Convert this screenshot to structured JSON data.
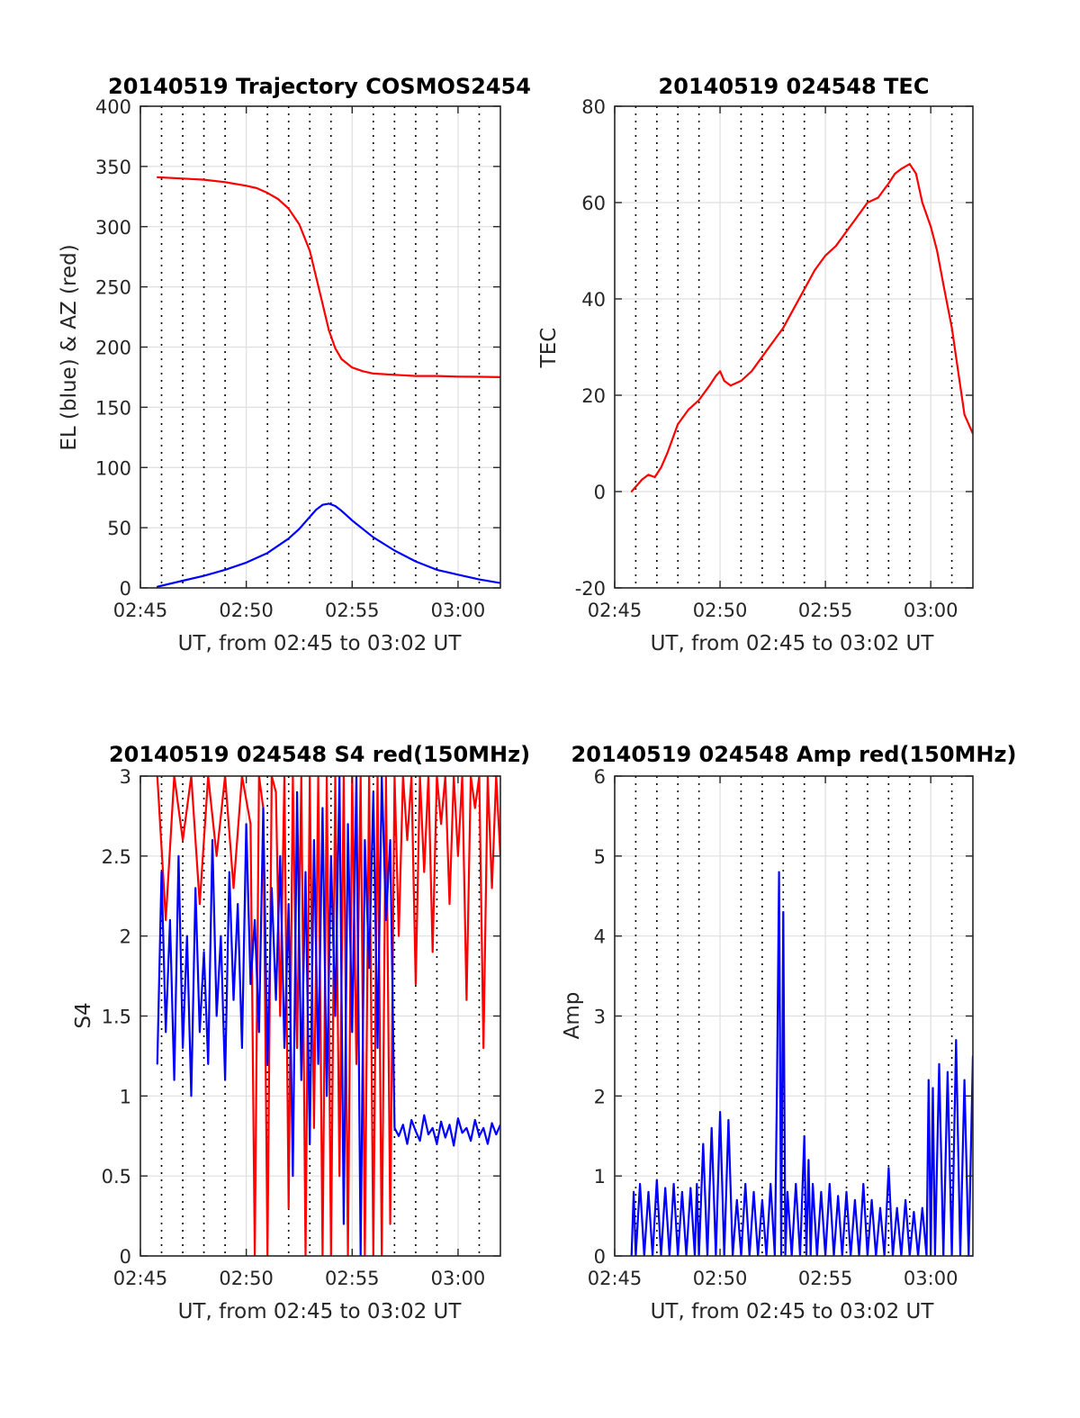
{
  "figure": {
    "background": "#ffffff",
    "colors": {
      "red": "#ff0000",
      "blue": "#0000ff",
      "axis": "#262626",
      "grid": "#dfdfdf",
      "vgrid": "#000000"
    }
  },
  "chart_data": [
    {
      "type": "line",
      "title": "20140519 Trajectory COSMOS2454",
      "xlabel": "UT, from 02:45 to 03:02 UT",
      "ylabel": "EL (blue) & AZ (red)",
      "xlim": [
        0,
        17
      ],
      "ylim": [
        0,
        400
      ],
      "xticks": [
        0,
        5,
        10,
        15
      ],
      "xticklabels": [
        "02:45",
        "02:50",
        "02:55",
        "03:00"
      ],
      "yticks": [
        0,
        50,
        100,
        150,
        200,
        250,
        300,
        350,
        400
      ],
      "yticklabels": [
        "0",
        "50",
        "100",
        "150",
        "200",
        "250",
        "300",
        "350",
        "400"
      ],
      "vgrid_minutes": [
        1,
        2,
        3,
        4,
        6,
        7,
        8,
        9,
        11,
        12,
        13,
        14,
        16
      ],
      "series": [
        {
          "color": "red",
          "x": [
            0.8,
            2,
            3,
            4,
            5,
            5.5,
            6,
            6.5,
            7,
            7.5,
            8,
            8.3,
            8.6,
            8.9,
            9.2,
            9.5,
            10,
            10.5,
            11,
            12,
            13,
            14,
            15,
            16,
            17
          ],
          "values": [
            341,
            340,
            339,
            337,
            334,
            332,
            328,
            323,
            315,
            302,
            280,
            258,
            236,
            214,
            199,
            190,
            183,
            180,
            178,
            177,
            176,
            176,
            175.5,
            175.3,
            175
          ]
        },
        {
          "color": "blue",
          "x": [
            0.8,
            2,
            3,
            4,
            5,
            6,
            7,
            7.5,
            8,
            8.3,
            8.6,
            8.9,
            9.2,
            9.5,
            10,
            11,
            12,
            13,
            14,
            15,
            16,
            17
          ],
          "values": [
            1,
            6,
            10,
            15,
            21,
            29,
            41,
            49,
            59,
            65,
            69,
            70,
            68,
            64,
            56,
            42,
            31,
            22,
            15,
            11,
            7,
            4
          ]
        }
      ]
    },
    {
      "type": "line",
      "title": "20140519 024548 TEC",
      "xlabel": "UT, from 02:45 to 03:02 UT",
      "ylabel": "TEC",
      "xlim": [
        0,
        17
      ],
      "ylim": [
        -20,
        80
      ],
      "xticks": [
        0,
        5,
        10,
        15
      ],
      "xticklabels": [
        "02:45",
        "02:50",
        "02:55",
        "03:00"
      ],
      "yticks": [
        -20,
        0,
        20,
        40,
        60,
        80
      ],
      "yticklabels": [
        "-20",
        "0",
        "20",
        "40",
        "60",
        "80"
      ],
      "vgrid_minutes": [
        1,
        2,
        3,
        4,
        6,
        7,
        8,
        9,
        11,
        12,
        13,
        14,
        16
      ],
      "series": [
        {
          "color": "red",
          "x": [
            0.8,
            1,
            1.3,
            1.6,
            1.9,
            2.2,
            2.5,
            3,
            3.5,
            4,
            4.5,
            4.8,
            5,
            5.2,
            5.5,
            6,
            6.5,
            7,
            7.5,
            8,
            8.5,
            9,
            9.5,
            10,
            10.5,
            11,
            11.5,
            12,
            12.5,
            13,
            13.3,
            13.6,
            14,
            14.3,
            14.6,
            15,
            15.3,
            15.6,
            16,
            16.3,
            16.6,
            17
          ],
          "values": [
            0,
            1,
            2.5,
            3.5,
            3,
            5,
            8,
            14,
            17,
            19,
            22,
            24,
            25,
            23,
            22,
            23,
            25,
            28,
            31,
            34,
            38,
            42,
            46,
            49,
            51,
            54,
            57,
            60,
            61,
            64,
            66,
            67,
            68,
            66,
            60,
            55,
            50,
            43,
            34,
            25,
            16,
            12
          ]
        }
      ]
    },
    {
      "type": "line",
      "title": "20140519 024548 S4 red(150MHz)",
      "xlabel": "UT, from 02:45 to 03:02 UT",
      "ylabel": "S4",
      "xlim": [
        0,
        17
      ],
      "ylim": [
        0,
        3
      ],
      "xticks": [
        0,
        5,
        10,
        15
      ],
      "xticklabels": [
        "02:45",
        "02:50",
        "02:55",
        "03:00"
      ],
      "yticks": [
        0,
        0.5,
        1,
        1.5,
        2,
        2.5,
        3
      ],
      "yticklabels": [
        "0",
        "0.5",
        "1",
        "1.5",
        "2",
        "2.5",
        "3"
      ],
      "vgrid_minutes": [
        1,
        2,
        3,
        4,
        6,
        7,
        8,
        9,
        11,
        12,
        13,
        14,
        16
      ],
      "series": [
        {
          "color": "red",
          "x": [
            0.8,
            1.2,
            1.6,
            2,
            2.4,
            2.8,
            3.2,
            3.6,
            4,
            4.4,
            4.8,
            5.2,
            5.4,
            5.6,
            5.8,
            6,
            6.2,
            6.4,
            6.6,
            6.8,
            7,
            7.2,
            7.4,
            7.6,
            7.8,
            8,
            8.2,
            8.4,
            8.6,
            8.8,
            9,
            9.2,
            9.4,
            9.6,
            9.8,
            10,
            10.2,
            10.4,
            10.6,
            10.8,
            11,
            11.2,
            11.4,
            11.6,
            11.8,
            12,
            12.2,
            12.4,
            12.6,
            12.8,
            13,
            13.2,
            13.4,
            13.6,
            13.8,
            14,
            14.2,
            14.4,
            14.6,
            14.8,
            15,
            15.2,
            15.4,
            15.6,
            15.8,
            16,
            16.2,
            16.4,
            16.6,
            16.8,
            17
          ],
          "values": [
            3,
            2.1,
            3,
            2.6,
            3,
            2.2,
            3,
            2.5,
            3,
            2.3,
            3,
            2.7,
            0,
            3,
            2.8,
            0,
            3,
            2.9,
            1.5,
            3,
            0.3,
            3,
            1.3,
            3,
            0,
            3,
            0.8,
            3,
            0,
            3,
            0,
            3,
            0.5,
            3,
            0,
            3,
            1.2,
            3,
            0,
            3,
            0,
            3,
            0,
            3,
            0.2,
            3,
            2,
            3,
            2.6,
            3,
            1.7,
            3,
            2.4,
            3,
            1.9,
            3,
            2.7,
            3,
            2.2,
            3,
            2.5,
            3,
            1.6,
            3,
            2.8,
            3,
            1.3,
            3,
            2.3,
            3,
            2.5
          ]
        },
        {
          "color": "blue",
          "x": [
            0.8,
            1,
            1.2,
            1.4,
            1.6,
            1.8,
            2,
            2.2,
            2.4,
            2.6,
            2.8,
            3,
            3.2,
            3.4,
            3.6,
            3.8,
            4,
            4.2,
            4.4,
            4.6,
            4.8,
            5,
            5.2,
            5.4,
            5.6,
            5.8,
            6,
            6.2,
            6.4,
            6.6,
            6.8,
            7,
            7.2,
            7.4,
            7.6,
            7.8,
            8,
            8.2,
            8.4,
            8.6,
            8.8,
            9,
            9.2,
            9.4,
            9.6,
            9.8,
            10,
            10.2,
            10.4,
            10.6,
            10.8,
            11,
            11.2,
            11.4,
            11.6,
            11.8,
            12,
            12.2,
            12.4,
            12.6,
            12.8,
            13,
            13.2,
            13.4,
            13.6,
            13.8,
            14,
            14.2,
            14.4,
            14.6,
            14.8,
            15,
            15.2,
            15.4,
            15.6,
            15.8,
            16,
            16.2,
            16.4,
            16.6,
            16.8,
            17
          ],
          "values": [
            1.2,
            2.4,
            1.4,
            2.1,
            1.1,
            2.5,
            1.3,
            2,
            1,
            2.3,
            1.4,
            1.9,
            1.2,
            2.6,
            1.5,
            2,
            1.1,
            2.4,
            1.6,
            2.2,
            1.3,
            2.7,
            1.7,
            2.1,
            1.4,
            2.8,
            1.2,
            2.3,
            1.6,
            2.5,
            1.3,
            2.2,
            0.5,
            2.9,
            1.1,
            2.4,
            0.7,
            2.6,
            1.2,
            2.8,
            1,
            2.5,
            1.5,
            3,
            0.2,
            2.7,
            1.4,
            3,
            0,
            2.6,
            1.8,
            2.9,
            1.3,
            3,
            2.1,
            2.6,
            0.8,
            0.75,
            0.82,
            0.7,
            0.85,
            0.78,
            0.72,
            0.88,
            0.76,
            0.8,
            0.7,
            0.84,
            0.74,
            0.82,
            0.69,
            0.86,
            0.77,
            0.8,
            0.72,
            0.85,
            0.75,
            0.8,
            0.7,
            0.83,
            0.76,
            0.82
          ]
        }
      ]
    },
    {
      "type": "line",
      "title": "20140519 024548 Amp red(150MHz)",
      "xlabel": "UT, from 02:45 to 03:02 UT",
      "ylabel": "Amp",
      "xlim": [
        0,
        17
      ],
      "ylim": [
        0,
        6
      ],
      "xticks": [
        0,
        5,
        10,
        15
      ],
      "xticklabels": [
        "02:45",
        "02:50",
        "02:55",
        "03:00"
      ],
      "yticks": [
        0,
        1,
        2,
        3,
        4,
        5,
        6
      ],
      "yticklabels": [
        "0",
        "1",
        "2",
        "3",
        "4",
        "5",
        "6"
      ],
      "vgrid_minutes": [
        1,
        2,
        3,
        4,
        6,
        7,
        8,
        9,
        11,
        12,
        13,
        14,
        16
      ],
      "series": [
        {
          "color": "blue",
          "x": [
            0.8,
            0.9,
            1,
            1.2,
            1.4,
            1.6,
            1.8,
            2,
            2.2,
            2.4,
            2.6,
            2.8,
            3,
            3.2,
            3.4,
            3.6,
            3.8,
            3.9,
            4,
            4.2,
            4.4,
            4.6,
            4.8,
            5,
            5.2,
            5.4,
            5.6,
            5.8,
            6,
            6.2,
            6.4,
            6.6,
            6.8,
            7,
            7.2,
            7.4,
            7.6,
            7.7,
            7.8,
            7.9,
            8,
            8.1,
            8.2,
            8.4,
            8.6,
            8.8,
            9,
            9.1,
            9.2,
            9.3,
            9.4,
            9.6,
            9.8,
            10,
            10.2,
            10.4,
            10.6,
            10.8,
            11,
            11.2,
            11.4,
            11.6,
            11.8,
            12,
            12.2,
            12.4,
            12.6,
            12.8,
            13,
            13.2,
            13.4,
            13.6,
            13.8,
            14,
            14.2,
            14.4,
            14.6,
            14.8,
            14.9,
            15,
            15.1,
            15.2,
            15.4,
            15.6,
            15.8,
            16,
            16.2,
            16.4,
            16.6,
            16.8,
            17
          ],
          "values": [
            0,
            0.8,
            0,
            0.9,
            0,
            0.8,
            0,
            0.95,
            0,
            0.85,
            0,
            0.9,
            0,
            0.8,
            0,
            0.85,
            0,
            0.9,
            0,
            1.4,
            0,
            1.6,
            0,
            1.8,
            0,
            1.7,
            0,
            0.7,
            0,
            0.9,
            0,
            0.8,
            0,
            0.7,
            0,
            0.9,
            0,
            2.1,
            4.8,
            0,
            4.3,
            0,
            0.8,
            0,
            0.9,
            0,
            1.5,
            0,
            1.2,
            0,
            0.9,
            0,
            0.8,
            0,
            0.9,
            0,
            0.75,
            0,
            0.8,
            0,
            0.7,
            0,
            0.9,
            0,
            0.7,
            0,
            0.6,
            0,
            1.1,
            0,
            0.6,
            0,
            0.7,
            0,
            0.55,
            0,
            0.6,
            0,
            2.2,
            0,
            2.1,
            0,
            2.4,
            0,
            2.3,
            0,
            2.7,
            0,
            2.2,
            0,
            2.5
          ]
        }
      ]
    }
  ]
}
